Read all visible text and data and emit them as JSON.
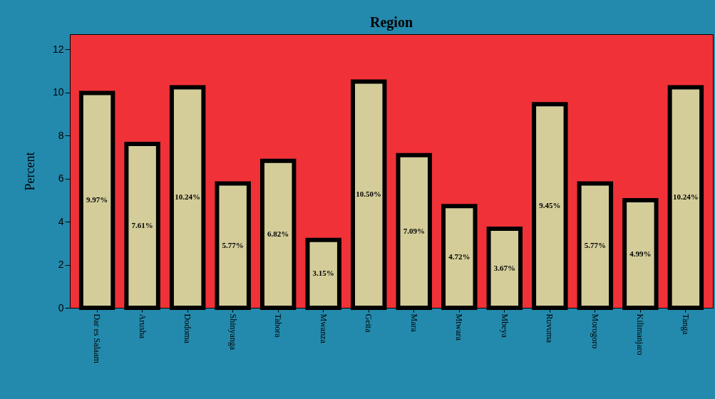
{
  "chart_data": {
    "type": "bar",
    "title": "Region",
    "ylabel": "Percent",
    "categories": [
      "Dar es Salaam",
      "Arusha",
      "Dodoma",
      "Shinyanga",
      "Tabora",
      "Mwanza",
      "Geita",
      "Mara",
      "Mtwara",
      "Mbeya",
      "Ruvuma",
      "Morogoro",
      "Kilimanjaro",
      "Tanga"
    ],
    "values": [
      9.97,
      7.61,
      10.24,
      5.77,
      6.82,
      3.15,
      10.5,
      7.09,
      4.72,
      3.67,
      9.45,
      5.77,
      4.99,
      10.24
    ],
    "value_labels": [
      "9.97%",
      "7.61%",
      "10.24%",
      "5.77%",
      "6.82%",
      "3.15%",
      "10.50%",
      "7.09%",
      "4.72%",
      "3.67%",
      "9.45%",
      "5.77%",
      "4.99%",
      "10.24%"
    ],
    "color": "#d4cd9a",
    "ylim": [
      0,
      12.7
    ],
    "yticks": [
      0,
      2,
      4,
      6,
      8,
      10,
      12
    ],
    "grid": false
  }
}
